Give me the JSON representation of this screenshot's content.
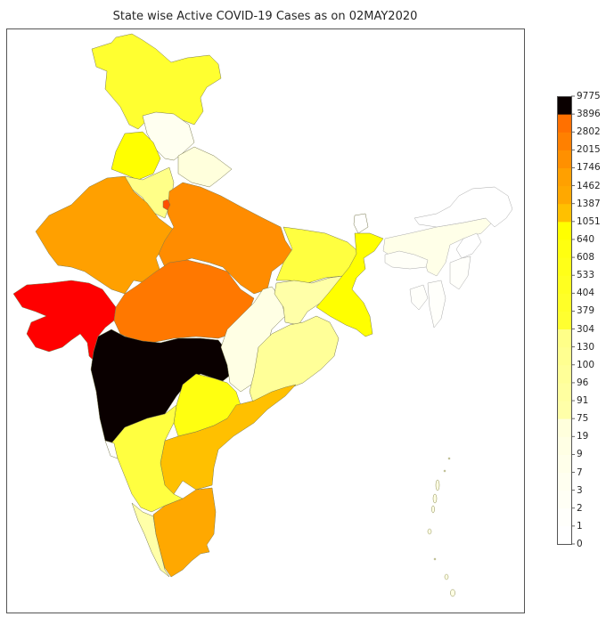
{
  "chart_data": {
    "type": "choropleth",
    "title": "State wise Active COVID-19 Cases as on 02MAY2020",
    "colormap": "hot_r (quantile bins)",
    "colorbar": {
      "orientation": "vertical",
      "position": "right",
      "ticks": [
        "0",
        "1",
        "2",
        "3",
        "7",
        "9",
        "19",
        "75",
        "91",
        "96",
        "100",
        "130",
        "304",
        "379",
        "404",
        "533",
        "608",
        "640",
        "1051",
        "1387",
        "1462",
        "1746",
        "2015",
        "2802",
        "3896",
        "9775"
      ],
      "bins": [
        {
          "from": "0",
          "to": "1",
          "color": "#ffffff"
        },
        {
          "from": "1",
          "to": "2",
          "color": "#fffffb"
        },
        {
          "from": "2",
          "to": "3",
          "color": "#fffff5"
        },
        {
          "from": "3",
          "to": "7",
          "color": "#fffff0"
        },
        {
          "from": "7",
          "to": "9",
          "color": "#ffffea"
        },
        {
          "from": "9",
          "to": "19",
          "color": "#ffffe4"
        },
        {
          "from": "19",
          "to": "75",
          "color": "#ffffdc"
        },
        {
          "from": "75",
          "to": "91",
          "color": "#ffffa8"
        },
        {
          "from": "91",
          "to": "96",
          "color": "#ffffa0"
        },
        {
          "from": "96",
          "to": "100",
          "color": "#ffff98"
        },
        {
          "from": "100",
          "to": "130",
          "color": "#ffff90"
        },
        {
          "from": "130",
          "to": "304",
          "color": "#ffff88"
        },
        {
          "from": "304",
          "to": "379",
          "color": "#ffff30"
        },
        {
          "from": "379",
          "to": "404",
          "color": "#ffff28"
        },
        {
          "from": "404",
          "to": "533",
          "color": "#ffff20"
        },
        {
          "from": "533",
          "to": "608",
          "color": "#ffff18"
        },
        {
          "from": "608",
          "to": "640",
          "color": "#ffff10"
        },
        {
          "from": "640",
          "to": "1051",
          "color": "#ffff00"
        },
        {
          "from": "1051",
          "to": "1387",
          "color": "#ffc000"
        },
        {
          "from": "1387",
          "to": "1462",
          "color": "#ffa800"
        },
        {
          "from": "1462",
          "to": "1746",
          "color": "#ffa000"
        },
        {
          "from": "1746",
          "to": "2015",
          "color": "#ff9000"
        },
        {
          "from": "2015",
          "to": "2802",
          "color": "#ff8000"
        },
        {
          "from": "2802",
          "to": "3896",
          "color": "#ff7000"
        },
        {
          "from": "3896",
          "to": "9775",
          "color": "#ff3c00"
        },
        {
          "from": "9775",
          "to": "9775+",
          "color": "#0a0000"
        }
      ]
    },
    "regions": [
      {
        "name": "Jammu & Kashmir / Ladakh",
        "bin": "304-379",
        "color": "#ffff30"
      },
      {
        "name": "Himachal Pradesh",
        "bin": "0-19",
        "color": "#fffff0"
      },
      {
        "name": "Punjab",
        "bin": "640-1051",
        "color": "#ffff00"
      },
      {
        "name": "Uttarakhand",
        "bin": "19-75",
        "color": "#ffffdc"
      },
      {
        "name": "Haryana",
        "bin": "130-304",
        "color": "#ffff88"
      },
      {
        "name": "Delhi",
        "bin": "2802-3896",
        "color": "#ff5000"
      },
      {
        "name": "Rajasthan",
        "bin": "1462-1746",
        "color": "#ffa000"
      },
      {
        "name": "Uttar Pradesh",
        "bin": "1746-2015",
        "color": "#ff8c00"
      },
      {
        "name": "Gujarat",
        "bin": "3896-9775",
        "color": "#ff0000"
      },
      {
        "name": "Madhya Pradesh",
        "bin": "2015-2802",
        "color": "#ff7800"
      },
      {
        "name": "Maharashtra",
        "bin": "9775",
        "color": "#0a0000"
      },
      {
        "name": "Bihar",
        "bin": "304-379",
        "color": "#ffff40"
      },
      {
        "name": "Jharkhand",
        "bin": "75-91",
        "color": "#ffffa8"
      },
      {
        "name": "West Bengal",
        "bin": "640-1051",
        "color": "#ffff00"
      },
      {
        "name": "Chhattisgarh",
        "bin": "19-75",
        "color": "#ffffe4"
      },
      {
        "name": "Odisha",
        "bin": "100-130",
        "color": "#ffff98"
      },
      {
        "name": "Telangana",
        "bin": "640-1051",
        "color": "#ffff10"
      },
      {
        "name": "Andhra Pradesh",
        "bin": "1051-1387",
        "color": "#ffc000"
      },
      {
        "name": "Karnataka",
        "bin": "404-533",
        "color": "#ffff40"
      },
      {
        "name": "Goa",
        "bin": "0",
        "color": "#ffffff"
      },
      {
        "name": "Kerala",
        "bin": "75-91",
        "color": "#ffffa8"
      },
      {
        "name": "Tamil Nadu",
        "bin": "1462-1746",
        "color": "#ffa800"
      },
      {
        "name": "Assam",
        "bin": "19-75",
        "color": "#ffffe8"
      },
      {
        "name": "Arunachal Pradesh",
        "bin": "0",
        "color": "#ffffff"
      },
      {
        "name": "Meghalaya",
        "bin": "0-3",
        "color": "#fffff8"
      },
      {
        "name": "Nagaland",
        "bin": "0",
        "color": "#ffffff"
      },
      {
        "name": "Manipur",
        "bin": "0-2",
        "color": "#fffffb"
      },
      {
        "name": "Mizoram",
        "bin": "0-2",
        "color": "#fffffb"
      },
      {
        "name": "Tripura",
        "bin": "0-2",
        "color": "#fffffb"
      },
      {
        "name": "Sikkim",
        "bin": "0",
        "color": "#ffffff"
      },
      {
        "name": "Andaman & Nicobar",
        "bin": "9-19",
        "color": "#ffffe4"
      }
    ]
  },
  "title": "State wise Active COVID-19 Cases as on 02MAY2020"
}
